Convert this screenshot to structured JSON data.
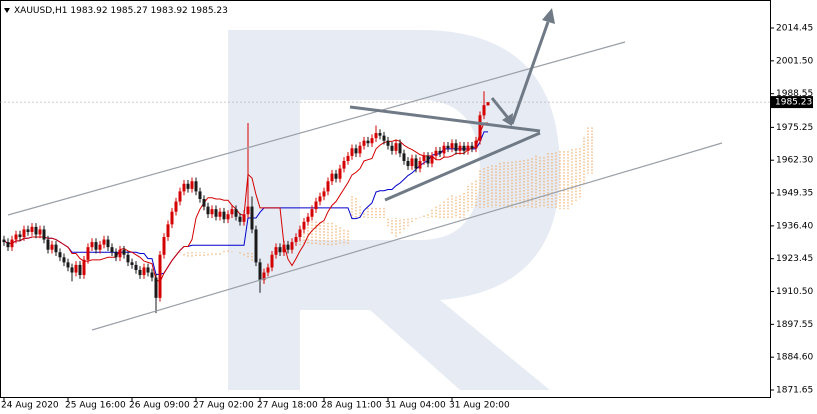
{
  "chart_data": {
    "type": "candlestick",
    "symbol": "XAUUSD,H1",
    "up_color": "#d40000",
    "down_color": "#1a1a1a",
    "tenkan_color": "#d40000",
    "kijun_color": "#0000cc",
    "cloud_color": "#f0a050",
    "ylim": [
      1868.5,
      2025.5
    ],
    "yticks": [
      2014.45,
      {
        "value": 2001.5,
        "label": "2001.50"
      },
      1988.55,
      1975.25,
      {
        "value": 1962.3,
        "label": "1962.30"
      },
      1949.35,
      {
        "value": 1936.4,
        "label": "1936.40"
      },
      1923.45,
      {
        "value": 1910.5,
        "label": "1910.50"
      },
      1897.55,
      {
        "value": 1884.6,
        "label": "1884.60"
      },
      1871.65
    ],
    "categories": [
      "24 Aug 2020",
      null,
      null,
      null,
      null,
      null,
      null,
      null,
      null,
      null,
      null,
      null,
      null,
      null,
      null,
      null,
      "25 Aug 16:00",
      null,
      null,
      null,
      null,
      null,
      null,
      null,
      null,
      null,
      null,
      null,
      null,
      null,
      null,
      null,
      "26 Aug 09:00",
      null,
      null,
      null,
      null,
      null,
      null,
      null,
      null,
      null,
      null,
      null,
      null,
      null,
      null,
      null,
      "27 Aug 02:00",
      null,
      null,
      null,
      null,
      null,
      null,
      null,
      null,
      null,
      null,
      null,
      null,
      null,
      null,
      null,
      "27 Aug 18:00",
      null,
      null,
      null,
      null,
      null,
      null,
      null,
      null,
      null,
      null,
      null,
      null,
      null,
      null,
      null,
      "28 Aug 11:00",
      null,
      null,
      null,
      null,
      null,
      null,
      null,
      null,
      null,
      null,
      null,
      null,
      null,
      null,
      null,
      "31 Aug 04:00",
      null,
      null,
      null,
      null,
      null,
      null,
      null,
      null,
      null,
      null,
      null,
      null,
      null,
      null,
      null,
      "31 Aug 20:00",
      null,
      null,
      null,
      null,
      null,
      null,
      null,
      null,
      null
    ],
    "candles": [
      [
        1931,
        1932.5,
        1928.5,
        1930
      ],
      [
        1930,
        1931.5,
        1926.5,
        1928
      ],
      [
        1928,
        1932.5,
        1926.5,
        1931
      ],
      [
        1931,
        1934.5,
        1929.5,
        1933
      ],
      [
        1933,
        1934.5,
        1930.5,
        1932
      ],
      [
        1932,
        1936.5,
        1930.5,
        1935
      ],
      [
        1935,
        1936.5,
        1932.5,
        1934
      ],
      [
        1934,
        1937.5,
        1932.5,
        1936
      ],
      [
        1936,
        1937.5,
        1931.5,
        1933
      ],
      [
        1933,
        1936.5,
        1931.5,
        1935
      ],
      [
        1935,
        1936.5,
        1929.5,
        1931
      ],
      [
        1931,
        1932.5,
        1925.5,
        1927
      ],
      [
        1927,
        1930.5,
        1925.5,
        1929
      ],
      [
        1929,
        1930.5,
        1924.5,
        1926
      ],
      [
        1926,
        1927.5,
        1922.5,
        1924
      ],
      [
        1924,
        1925.5,
        1920.5,
        1922
      ],
      [
        1922,
        1923.5,
        1918.5,
        1920
      ],
      [
        1920,
        1921.5,
        1914.5,
        1918
      ],
      [
        1918,
        1922.5,
        1916.5,
        1921
      ],
      [
        1921,
        1922.5,
        1915.5,
        1917
      ],
      [
        1917,
        1924.5,
        1915.5,
        1923
      ],
      [
        1923,
        1929.5,
        1921.5,
        1928
      ],
      [
        1928,
        1931.5,
        1926.5,
        1930
      ],
      [
        1930,
        1931.5,
        1925.5,
        1927
      ],
      [
        1927,
        1930.5,
        1925.5,
        1929
      ],
      [
        1929,
        1932.5,
        1927.5,
        1931
      ],
      [
        1931,
        1932.5,
        1926.5,
        1928
      ],
      [
        1928,
        1929.5,
        1924.5,
        1926
      ],
      [
        1926,
        1927.5,
        1922.5,
        1924
      ],
      [
        1924,
        1928.5,
        1922.5,
        1927
      ],
      [
        1927,
        1928.5,
        1923.5,
        1925
      ],
      [
        1925,
        1926.5,
        1920.5,
        1922
      ],
      [
        1922,
        1923.5,
        1919.5,
        1921
      ],
      [
        1921,
        1922.5,
        1917.5,
        1919
      ],
      [
        1919,
        1920.5,
        1915.5,
        1917
      ],
      [
        1917,
        1921.5,
        1915.5,
        1920
      ],
      [
        1920,
        1921.5,
        1916.5,
        1918
      ],
      [
        1918,
        1919.5,
        1914.5,
        1916
      ],
      [
        1916,
        1917.5,
        1902,
        1908
      ],
      [
        1908,
        1926.5,
        1906.5,
        1925
      ],
      [
        1925,
        1933.5,
        1923.5,
        1932
      ],
      [
        1932,
        1938.5,
        1930.5,
        1937
      ],
      [
        1937,
        1943.5,
        1935.5,
        1942
      ],
      [
        1942,
        1947.5,
        1940.5,
        1946
      ],
      [
        1946,
        1951.5,
        1944.5,
        1950
      ],
      [
        1950,
        1954.5,
        1948.5,
        1953
      ],
      [
        1953,
        1954.5,
        1949.5,
        1951
      ],
      [
        1951,
        1955.5,
        1949.5,
        1954
      ],
      [
        1954,
        1955.5,
        1948.5,
        1950
      ],
      [
        1950,
        1951.5,
        1945.5,
        1947
      ],
      [
        1947,
        1948.5,
        1942.5,
        1944
      ],
      [
        1944,
        1945.5,
        1939.5,
        1941
      ],
      [
        1941,
        1944.5,
        1939.5,
        1943
      ],
      [
        1943,
        1944.5,
        1938.5,
        1940
      ],
      [
        1940,
        1943.5,
        1938.5,
        1942
      ],
      [
        1942,
        1943.5,
        1937.5,
        1939
      ],
      [
        1939,
        1942.5,
        1937.5,
        1941
      ],
      [
        1941,
        1944.5,
        1939.5,
        1943
      ],
      [
        1943,
        1944.5,
        1938.5,
        1940
      ],
      [
        1940,
        1941.5,
        1936.5,
        1938
      ],
      [
        1938,
        1942.5,
        1936.5,
        1941
      ],
      [
        1941,
        1977,
        1939.5,
        1944
      ],
      [
        1944,
        1948,
        1933.5,
        1935
      ],
      [
        1935,
        1936.5,
        1920.5,
        1922
      ],
      [
        1922,
        1923.5,
        1910,
        1915
      ],
      [
        1915,
        1919.5,
        1913.5,
        1918
      ],
      [
        1918,
        1921.5,
        1916.5,
        1920
      ],
      [
        1920,
        1926.5,
        1918.5,
        1925
      ],
      [
        1925,
        1929.5,
        1923.5,
        1928
      ],
      [
        1928,
        1929.5,
        1924.5,
        1926
      ],
      [
        1926,
        1930.5,
        1924.5,
        1929
      ],
      [
        1929,
        1930.5,
        1925.5,
        1927
      ],
      [
        1927,
        1931.5,
        1925.5,
        1930
      ],
      [
        1930,
        1933.5,
        1928.5,
        1932
      ],
      [
        1932,
        1936.5,
        1930.5,
        1935
      ],
      [
        1935,
        1939.5,
        1933.5,
        1938
      ],
      [
        1938,
        1941.5,
        1936.5,
        1940
      ],
      [
        1940,
        1944.5,
        1938.5,
        1943
      ],
      [
        1943,
        1947.5,
        1941.5,
        1946
      ],
      [
        1946,
        1949.5,
        1944.5,
        1948
      ],
      [
        1948,
        1951.5,
        1946.5,
        1950
      ],
      [
        1950,
        1955.5,
        1948.5,
        1954
      ],
      [
        1954,
        1958.5,
        1952.5,
        1957
      ],
      [
        1957,
        1958.5,
        1953.5,
        1955
      ],
      [
        1955,
        1960.5,
        1953.5,
        1959
      ],
      [
        1959,
        1963.5,
        1957.5,
        1962
      ],
      [
        1962,
        1965.5,
        1960.5,
        1964
      ],
      [
        1964,
        1968.5,
        1962.5,
        1967
      ],
      [
        1967,
        1968.5,
        1963.5,
        1965
      ],
      [
        1965,
        1969.5,
        1963.5,
        1968
      ],
      [
        1968,
        1971.5,
        1966.5,
        1970
      ],
      [
        1970,
        1971.5,
        1967.5,
        1969
      ],
      [
        1969,
        1972.5,
        1967.5,
        1971
      ],
      [
        1971,
        1976,
        1969.5,
        1973
      ],
      [
        1973,
        1974.5,
        1970.5,
        1972
      ],
      [
        1972,
        1973.5,
        1968.5,
        1970
      ],
      [
        1970,
        1971.5,
        1966.5,
        1968
      ],
      [
        1968,
        1969.5,
        1964.5,
        1966
      ],
      [
        1966,
        1970.5,
        1964.5,
        1969
      ],
      [
        1969,
        1970.5,
        1963.5,
        1965
      ],
      [
        1965,
        1966.5,
        1960.5,
        1962
      ],
      [
        1962,
        1963.5,
        1958.5,
        1960
      ],
      [
        1960,
        1964.5,
        1958.5,
        1963
      ],
      [
        1963,
        1964.5,
        1957.5,
        1959
      ],
      [
        1959,
        1963.5,
        1957.5,
        1962
      ],
      [
        1962,
        1965.5,
        1960.5,
        1964
      ],
      [
        1964,
        1965.5,
        1959.5,
        1961
      ],
      [
        1961,
        1965.5,
        1959.5,
        1964
      ],
      [
        1964,
        1967.5,
        1962.5,
        1966
      ],
      [
        1966,
        1967.5,
        1963.5,
        1965
      ],
      [
        1965,
        1969.5,
        1963.5,
        1968
      ],
      [
        1968,
        1969.5,
        1965.5,
        1967
      ],
      [
        1967,
        1970.5,
        1965.5,
        1969
      ],
      [
        1969,
        1970.5,
        1964.5,
        1966
      ],
      [
        1966,
        1969.5,
        1964.5,
        1968
      ],
      [
        1968,
        1969.5,
        1964.5,
        1966
      ],
      [
        1966,
        1969.5,
        1964.5,
        1968
      ],
      [
        1968,
        1969.5,
        1965.5,
        1967
      ],
      [
        1967,
        1971.5,
        1965.5,
        1970
      ],
      [
        1970,
        1981.5,
        1968.5,
        1980
      ],
      [
        1980,
        1989.5,
        1978.5,
        1984
      ],
      [
        1983.92,
        1985.27,
        1983.92,
        1985.23
      ]
    ]
  }
}
